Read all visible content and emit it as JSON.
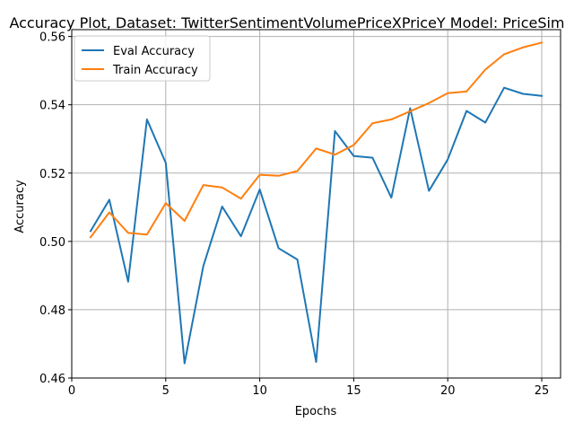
{
  "chart_data": {
    "type": "line",
    "title": "Accuracy Plot, Dataset: TwitterSentimentVolumePriceXPriceY Model: PriceSim",
    "xlabel": "Epochs",
    "ylabel": "Accuracy",
    "xlim": [
      0,
      26
    ],
    "ylim": [
      0.46,
      0.562
    ],
    "grid": true,
    "legend_position": "top-left",
    "x": [
      1,
      2,
      3,
      4,
      5,
      6,
      7,
      8,
      9,
      10,
      11,
      12,
      13,
      14,
      15,
      16,
      17,
      18,
      19,
      20,
      21,
      22,
      23,
      24,
      25
    ],
    "x_ticks": [
      0,
      5,
      10,
      15,
      20,
      25
    ],
    "x_tick_labels": [
      "0",
      "5",
      "10",
      "15",
      "20",
      "25"
    ],
    "y_ticks": [
      0.46,
      0.48,
      0.5,
      0.52,
      0.54,
      0.56
    ],
    "y_tick_labels": [
      "0.46",
      "0.48",
      "0.50",
      "0.52",
      "0.54",
      "0.56"
    ],
    "series": [
      {
        "name": "Eval Accuracy",
        "color": "#1f77b4",
        "values": [
          0.503,
          0.5122,
          0.4882,
          0.5357,
          0.523,
          0.4643,
          0.4928,
          0.5102,
          0.5015,
          0.5152,
          0.498,
          0.4947,
          0.4647,
          0.5323,
          0.525,
          0.5245,
          0.5128,
          0.539,
          0.5148,
          0.524,
          0.5382,
          0.5348,
          0.545,
          0.5432,
          0.5426
        ]
      },
      {
        "name": "Train Accuracy",
        "color": "#ff7f0e",
        "values": [
          0.5012,
          0.5085,
          0.5025,
          0.502,
          0.5112,
          0.506,
          0.5165,
          0.5158,
          0.5125,
          0.5195,
          0.5192,
          0.5206,
          0.5272,
          0.5254,
          0.5282,
          0.5346,
          0.5357,
          0.5381,
          0.5405,
          0.5434,
          0.5439,
          0.5503,
          0.5548,
          0.5568,
          0.5582
        ]
      }
    ]
  }
}
